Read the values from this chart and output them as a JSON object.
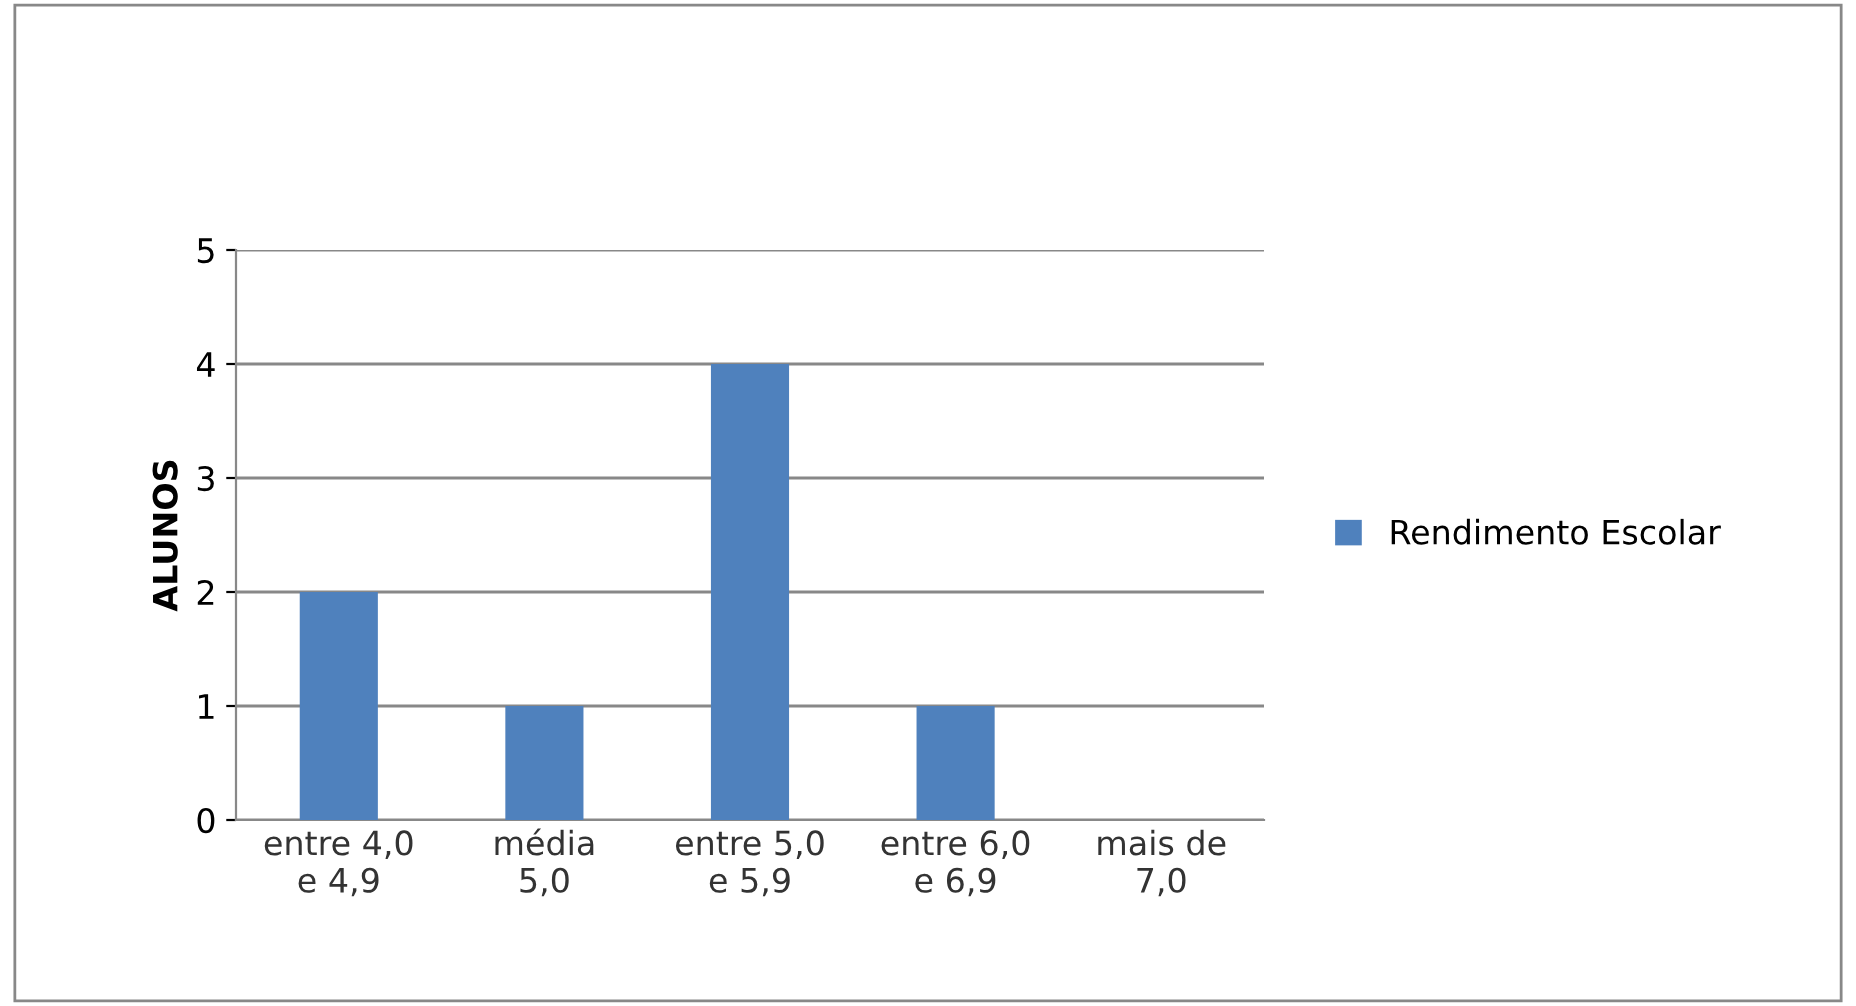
{
  "chart_data": {
    "type": "bar",
    "ylabel": "ALUNOS",
    "categories": [
      "entre 4,0\ne 4,9",
      "média\n5,0",
      "entre 5,0\ne 5,9",
      "entre 6,0\ne 6,9",
      "mais de\n7,0"
    ],
    "series": [
      {
        "name": "Rendimento Escolar",
        "color": "#4f81bd",
        "values": [
          2,
          1,
          4,
          1,
          0
        ]
      }
    ],
    "ylim": [
      0,
      5
    ],
    "yticks": [
      0,
      1,
      2,
      3,
      4,
      5
    ],
    "grid": "y",
    "legend": "right"
  }
}
